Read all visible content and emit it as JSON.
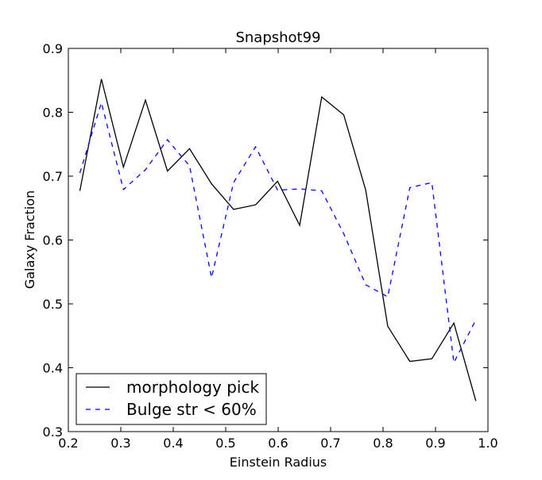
{
  "chart_data": {
    "type": "line",
    "title": "Snapshot99",
    "xlabel": "Einstein Radius",
    "ylabel": "Galaxy Fraction",
    "xlim": [
      0.2,
      1.0
    ],
    "ylim": [
      0.3,
      0.9
    ],
    "xticks": [
      "0.2",
      "0.3",
      "0.4",
      "0.5",
      "0.6",
      "0.7",
      "0.8",
      "0.9",
      "1.0"
    ],
    "yticks": [
      "0.3",
      "0.4",
      "0.5",
      "0.6",
      "0.7",
      "0.8",
      "0.9"
    ],
    "grid": false,
    "legend_position": "lower-left",
    "series": [
      {
        "name": "morphology pick",
        "color": "#000000",
        "style": "solid",
        "x": [
          0.222,
          0.263,
          0.305,
          0.347,
          0.389,
          0.431,
          0.473,
          0.515,
          0.557,
          0.599,
          0.641,
          0.683,
          0.725,
          0.767,
          0.809,
          0.851,
          0.893,
          0.935,
          0.977
        ],
        "y": [
          0.677,
          0.852,
          0.714,
          0.819,
          0.708,
          0.743,
          0.688,
          0.648,
          0.655,
          0.692,
          0.623,
          0.824,
          0.796,
          0.678,
          0.465,
          0.41,
          0.414,
          0.47,
          0.348
        ]
      },
      {
        "name": "Bulge str < 60%",
        "color": "#0000ff",
        "style": "dashed",
        "x": [
          0.222,
          0.263,
          0.305,
          0.347,
          0.389,
          0.431,
          0.473,
          0.515,
          0.557,
          0.599,
          0.641,
          0.683,
          0.725,
          0.767,
          0.809,
          0.851,
          0.893,
          0.935,
          0.977
        ],
        "y": [
          0.705,
          0.815,
          0.679,
          0.71,
          0.757,
          0.716,
          0.541,
          0.69,
          0.746,
          0.678,
          0.68,
          0.677,
          0.61,
          0.53,
          0.511,
          0.682,
          0.69,
          0.408,
          0.475
        ]
      }
    ]
  }
}
